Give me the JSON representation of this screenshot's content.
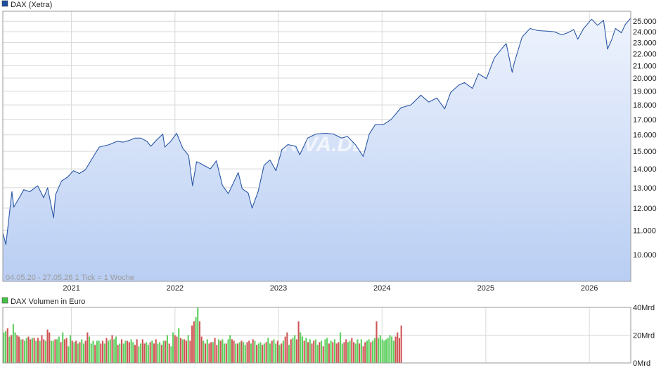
{
  "colors": {
    "price_line": "#2a57a6",
    "area_top": "#eef3fd",
    "area_bottom": "#b9cef3",
    "price_legend": "#1f4fa0",
    "volume_up": "#5fcf5f",
    "volume_down": "#cf5555",
    "volume_legend": "#44c244"
  },
  "chart_data": [
    {
      "type": "area",
      "legend": "DAX (Xetra)",
      "note": "04.05.20 - 27.05.26   1 Tick = 1 Woche",
      "watermark": "ARIVA.DE",
      "x_tick_labels": [
        "2021",
        "2022",
        "2023",
        "2024",
        "2025",
        "2026"
      ],
      "y_tick_labels": [
        "10.000",
        "11.000",
        "12.000",
        "13.000",
        "14.000",
        "15.000",
        "16.000",
        "17.000",
        "18.000",
        "19.000",
        "20.000",
        "21.000",
        "22.000",
        "23.000",
        "24.000",
        "25.000"
      ],
      "y_scale": "log",
      "ylim": [
        9000,
        26000
      ],
      "xlim": [
        "2020-05-04",
        "2026-05-27"
      ],
      "grid": true,
      "series": [
        {
          "name": "DAX (Xetra)",
          "x": [
            "2020-05-04",
            "2020-05-15",
            "2020-06-05",
            "2020-06-12",
            "2020-07-01",
            "2020-07-17",
            "2020-08-07",
            "2020-09-04",
            "2020-09-25",
            "2020-10-09",
            "2020-10-30",
            "2020-11-06",
            "2020-11-27",
            "2020-12-18",
            "2021-01-08",
            "2021-01-29",
            "2021-02-19",
            "2021-03-12",
            "2021-04-09",
            "2021-05-14",
            "2021-06-11",
            "2021-07-02",
            "2021-07-23",
            "2021-08-13",
            "2021-09-03",
            "2021-09-24",
            "2021-10-08",
            "2021-10-29",
            "2021-11-19",
            "2021-11-26",
            "2021-12-17",
            "2022-01-07",
            "2022-01-28",
            "2022-02-18",
            "2022-03-04",
            "2022-03-18",
            "2022-04-01",
            "2022-05-06",
            "2022-05-27",
            "2022-06-17",
            "2022-07-08",
            "2022-08-12",
            "2022-08-26",
            "2022-09-16",
            "2022-09-30",
            "2022-10-21",
            "2022-11-11",
            "2022-12-02",
            "2022-12-23",
            "2023-01-13",
            "2023-02-03",
            "2023-03-03",
            "2023-03-17",
            "2023-04-14",
            "2023-05-12",
            "2023-06-16",
            "2023-07-14",
            "2023-08-11",
            "2023-09-01",
            "2023-09-29",
            "2023-10-27",
            "2023-11-17",
            "2023-12-08",
            "2024-01-05",
            "2024-02-02",
            "2024-03-08",
            "2024-04-12",
            "2024-05-17",
            "2024-06-14",
            "2024-07-12",
            "2024-08-09",
            "2024-08-30",
            "2024-09-27",
            "2024-10-18",
            "2024-11-15",
            "2024-12-06",
            "2025-01-03",
            "2025-01-31",
            "2025-02-28",
            "2025-03-14",
            "2025-04-04",
            "2025-04-11",
            "2025-05-09",
            "2025-06-06",
            "2025-07-04",
            "2025-08-01",
            "2025-08-29",
            "2025-09-26",
            "2025-10-17",
            "2025-11-07",
            "2025-11-21",
            "2025-12-12",
            "2026-01-09",
            "2026-01-30",
            "2026-02-20",
            "2026-03-06",
            "2026-03-20",
            "2026-04-03",
            "2026-04-24",
            "2026-05-08",
            "2026-05-27"
          ],
          "y": [
            10900,
            10400,
            12800,
            12050,
            12500,
            12900,
            12800,
            13100,
            12500,
            13000,
            11550,
            12650,
            13350,
            13550,
            13900,
            13750,
            13950,
            14500,
            15250,
            15400,
            15600,
            15550,
            15650,
            15800,
            15800,
            15600,
            15300,
            15700,
            16050,
            15250,
            15600,
            16100,
            15200,
            14750,
            13100,
            14400,
            14300,
            14000,
            14450,
            13130,
            12700,
            13800,
            12950,
            12740,
            12000,
            12800,
            14200,
            14500,
            13900,
            15100,
            15400,
            15300,
            14800,
            15800,
            16050,
            16100,
            16050,
            15800,
            15900,
            15400,
            14700,
            16050,
            16650,
            16650,
            17000,
            17800,
            18000,
            18700,
            18200,
            18500,
            17720,
            18900,
            19450,
            19650,
            19200,
            20350,
            19950,
            21650,
            22500,
            22900,
            20450,
            21200,
            23500,
            24300,
            24100,
            24050,
            24000,
            23700,
            23900,
            24200,
            23300,
            24300,
            25200,
            24600,
            25100,
            22400,
            23200,
            24300,
            23900,
            24700,
            25300
          ]
        }
      ]
    },
    {
      "type": "bar",
      "legend": "DAX Volumen in Euro",
      "y_tick_labels": [
        "0Mrd",
        "20Mrd",
        "40Mrd"
      ],
      "ylim": [
        0,
        40
      ],
      "unit": "Mrd",
      "grid": true,
      "series": [
        {
          "name": "DAX Volumen in Euro",
          "values": [
            22,
            23,
            25,
            19,
            20,
            28,
            22,
            20,
            19,
            17,
            17,
            16,
            18,
            19,
            17,
            18,
            18,
            16,
            18,
            16,
            20,
            17,
            16,
            24,
            22,
            16,
            16,
            17,
            17,
            19,
            15,
            22,
            17,
            18,
            12,
            20,
            16,
            15,
            16,
            14,
            15,
            17,
            14,
            16,
            22,
            19,
            14,
            16,
            13,
            16,
            16,
            14,
            16,
            14,
            18,
            16,
            17,
            20,
            17,
            19,
            13,
            14,
            17,
            14,
            16,
            16,
            15,
            17,
            15,
            13,
            17,
            12,
            14,
            17,
            14,
            15,
            13,
            15,
            16,
            14,
            17,
            14,
            15,
            13,
            16,
            16,
            20,
            14,
            12,
            22,
            20,
            19,
            25,
            18,
            17,
            17,
            16,
            20,
            16,
            27,
            30,
            33,
            40,
            30,
            19,
            16,
            14,
            17,
            14,
            15,
            15,
            18,
            13,
            17,
            16,
            17,
            14,
            14,
            17,
            20,
            17,
            16,
            14,
            14,
            15,
            16,
            15,
            13,
            15,
            16,
            14,
            17,
            16,
            13,
            14,
            15,
            13,
            14,
            15,
            18,
            14,
            16,
            17,
            14,
            16,
            13,
            14,
            16,
            19,
            22,
            13,
            17,
            18,
            20,
            17,
            30,
            22,
            19,
            16,
            18,
            15,
            17,
            14,
            16,
            17,
            13,
            15,
            16,
            12,
            17,
            18,
            14,
            16,
            15,
            17,
            14,
            15,
            22,
            14,
            15,
            17,
            15,
            16,
            18,
            15,
            14,
            17,
            14,
            17,
            12,
            15,
            16,
            17,
            15,
            16,
            18,
            30,
            18,
            20,
            17,
            16,
            17,
            18,
            20,
            19,
            16,
            19,
            22,
            18,
            27
          ],
          "direction": [
            "U",
            "U",
            "D",
            "U",
            "D",
            "U",
            "U",
            "D",
            "D",
            "U",
            "D",
            "U",
            "U",
            "D",
            "D",
            "U",
            "D",
            "U",
            "D",
            "U",
            "D",
            "D",
            "U",
            "D",
            "D",
            "U",
            "U",
            "D",
            "U",
            "U",
            "D",
            "U",
            "D",
            "D",
            "U",
            "U",
            "D",
            "U",
            "D",
            "U",
            "D",
            "U",
            "U",
            "D",
            "D",
            "U",
            "U",
            "U",
            "D",
            "U",
            "U",
            "D",
            "D",
            "U",
            "D",
            "U",
            "U",
            "D",
            "U",
            "U",
            "D",
            "U",
            "D",
            "U",
            "U",
            "D",
            "D",
            "U",
            "U",
            "D",
            "D",
            "U",
            "U",
            "D",
            "D",
            "U",
            "U",
            "D",
            "U",
            "D",
            "D",
            "U",
            "U",
            "D",
            "U",
            "D",
            "U",
            "D",
            "U",
            "U",
            "D",
            "D",
            "U",
            "D",
            "U",
            "D",
            "D",
            "U",
            "D",
            "D",
            "D",
            "U",
            "U",
            "D",
            "D",
            "U",
            "D",
            "U",
            "D",
            "D",
            "U",
            "D",
            "D",
            "U",
            "D",
            "U",
            "U",
            "D",
            "U",
            "U",
            "D",
            "D",
            "U",
            "D",
            "U",
            "D",
            "U",
            "U",
            "D",
            "D",
            "U",
            "D",
            "U",
            "D",
            "U",
            "U",
            "D",
            "U",
            "D",
            "U",
            "U",
            "D",
            "U",
            "U",
            "D",
            "U",
            "D",
            "U",
            "D",
            "D",
            "U",
            "D",
            "U",
            "U",
            "D",
            "D",
            "U",
            "U",
            "D",
            "U",
            "D",
            "U",
            "D",
            "D",
            "U",
            "U",
            "D",
            "U",
            "D",
            "U",
            "U",
            "D",
            "U",
            "D",
            "U",
            "D",
            "D",
            "U",
            "U",
            "D",
            "D",
            "U",
            "U",
            "D",
            "D",
            "U",
            "U",
            "D",
            "U",
            "D",
            "D",
            "U",
            "U",
            "D",
            "U",
            "U",
            "D",
            "U",
            "U",
            "U",
            "U",
            "U",
            "U",
            "U",
            "U",
            "U"
          ]
        }
      ]
    }
  ]
}
